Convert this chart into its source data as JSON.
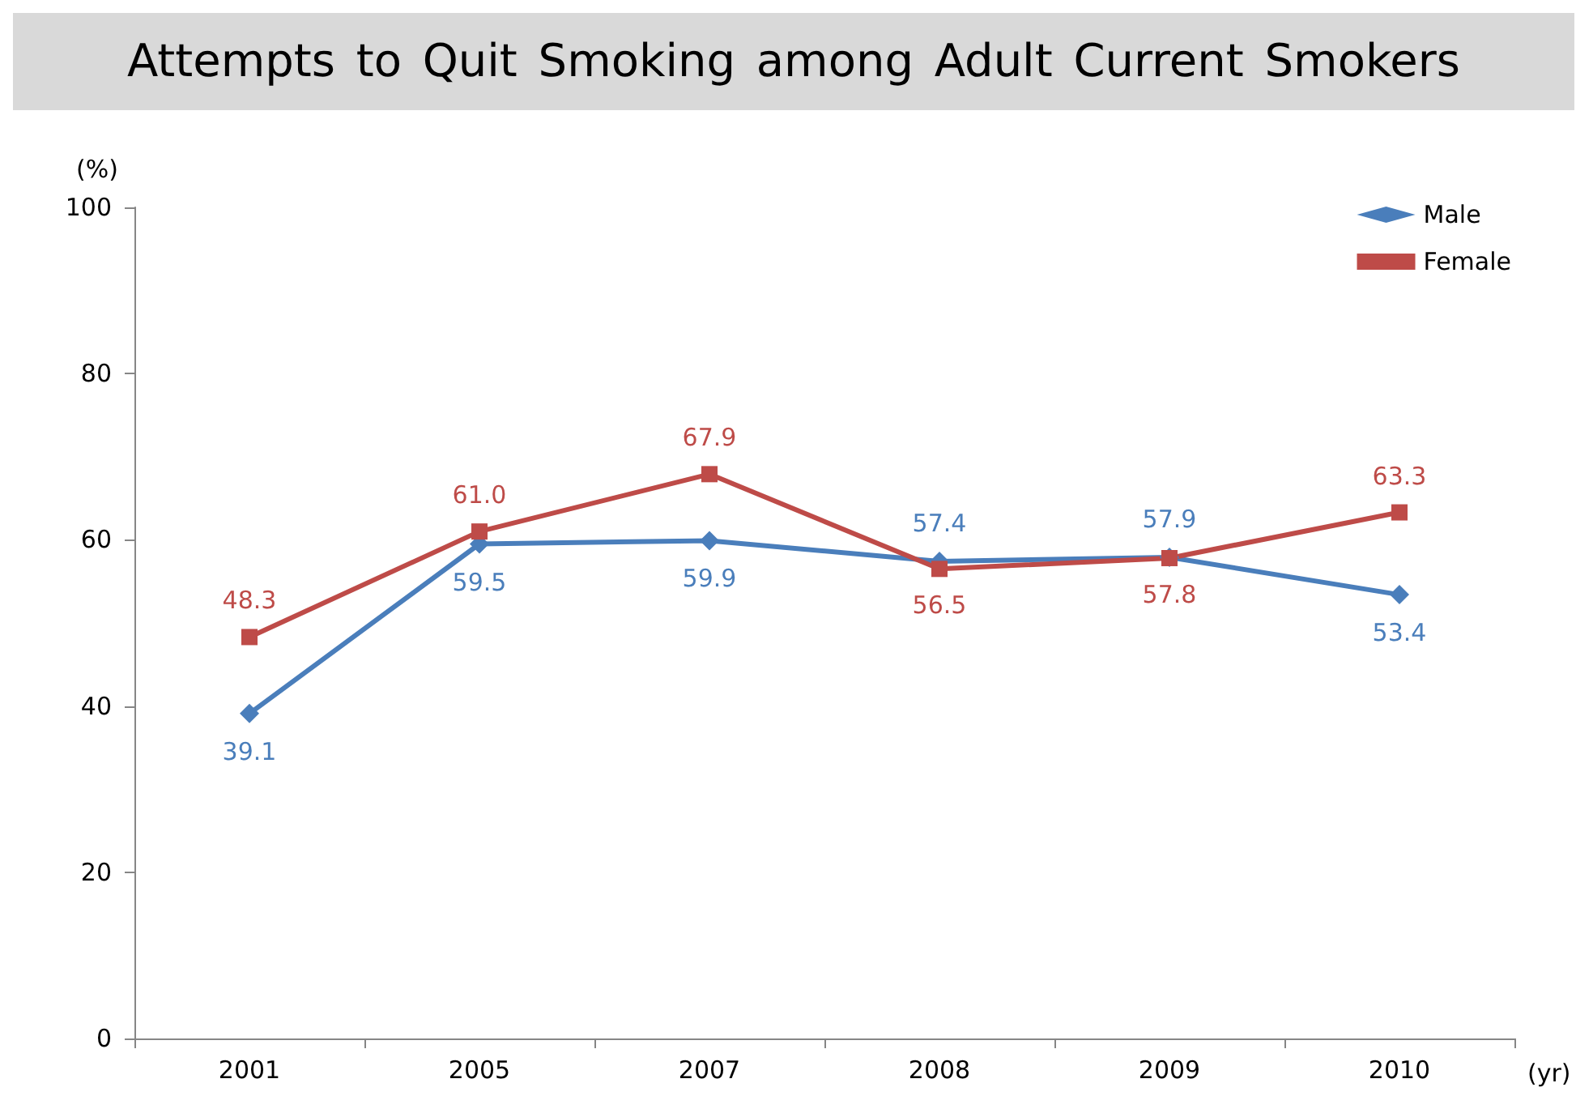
{
  "chart_data": {
    "type": "line",
    "title": "Attempts to Quit Smoking among Adult Current Smokers",
    "ylabel": "(%)",
    "xlabel": "(yr)",
    "categories": [
      "2001",
      "2005",
      "2007",
      "2008",
      "2009",
      "2010"
    ],
    "series": [
      {
        "name": "Male",
        "color": "#4a7ebb",
        "marker": "diamond",
        "values": [
          39.1,
          59.5,
          59.9,
          57.4,
          57.9,
          53.4
        ],
        "value_labels": [
          "39.1",
          "59.5",
          "59.9",
          "57.4",
          "57.9",
          "53.4"
        ]
      },
      {
        "name": "Female",
        "color": "#be4b48",
        "marker": "square",
        "values": [
          48.3,
          61.0,
          67.9,
          56.5,
          57.8,
          63.3
        ],
        "value_labels": [
          "48.3",
          "61.0",
          "67.9",
          "56.5",
          "57.8",
          "63.3"
        ]
      }
    ],
    "ylim": [
      0,
      100
    ],
    "yticks": [
      0,
      20,
      40,
      60,
      80,
      100
    ],
    "grid": false,
    "legend": "top right",
    "line_style": "solid"
  }
}
